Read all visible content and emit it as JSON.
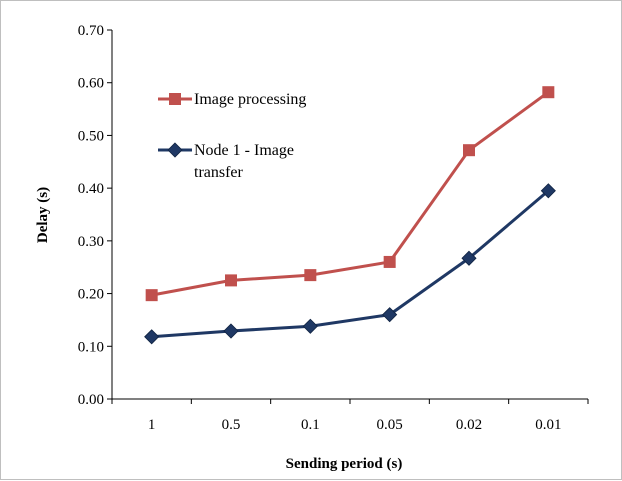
{
  "chart_data": {
    "type": "line",
    "title": "",
    "xlabel": "Sending period (s)",
    "ylabel": "Delay (s)",
    "categories": [
      "1",
      "0.5",
      "0.1",
      "0.05",
      "0.02",
      "0.01"
    ],
    "ylim": [
      0,
      0.7
    ],
    "yticks": [
      "0.00",
      "0.10",
      "0.20",
      "0.30",
      "0.40",
      "0.50",
      "0.60",
      "0.70"
    ],
    "grid": false,
    "legend_position": "top-left inside plot",
    "series": [
      {
        "name": "Image processing",
        "values": [
          0.197,
          0.225,
          0.235,
          0.26,
          0.472,
          0.582
        ],
        "color": "#c0504d",
        "marker": "square"
      },
      {
        "name": "Node 1 - Image transfer",
        "legend_lines": [
          "Node 1 - Image",
          "transfer"
        ],
        "values": [
          0.118,
          0.129,
          0.138,
          0.16,
          0.267,
          0.395
        ],
        "color": "#1f3864",
        "marker": "diamond"
      }
    ]
  }
}
